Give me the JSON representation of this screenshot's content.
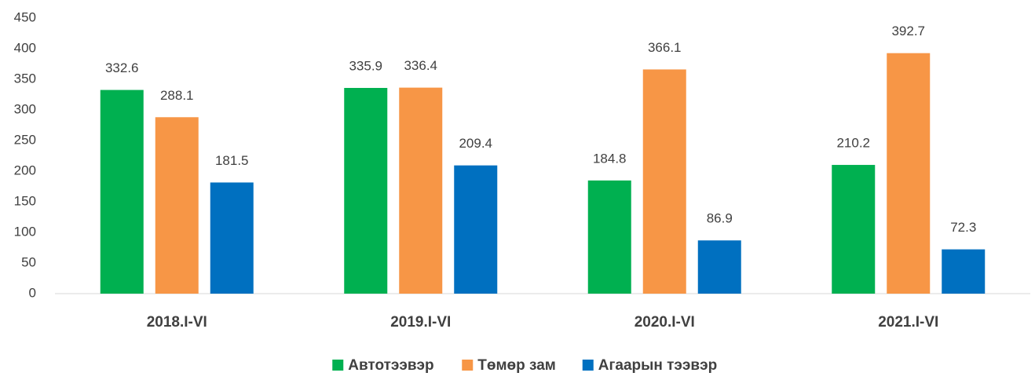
{
  "chart_data": {
    "type": "bar",
    "categories": [
      "2018.I-VI",
      "2019.I-VI",
      "2020.I-VI",
      "2021.I-VI"
    ],
    "series": [
      {
        "name": "Автотээвэр",
        "color": "#00b050",
        "values": [
          332.6,
          335.9,
          184.8,
          210.2
        ]
      },
      {
        "name": "Төмөр зам",
        "color": "#f79646",
        "values": [
          288.1,
          336.4,
          366.1,
          392.7
        ]
      },
      {
        "name": "Агаарын тээвэр",
        "color": "#0070c0",
        "values": [
          181.5,
          209.4,
          86.9,
          72.3
        ]
      }
    ],
    "ylim": [
      0,
      450
    ],
    "yticks": [
      0,
      50,
      100,
      150,
      200,
      250,
      300,
      350,
      400,
      450
    ],
    "grid": false,
    "legend": "bottom"
  }
}
